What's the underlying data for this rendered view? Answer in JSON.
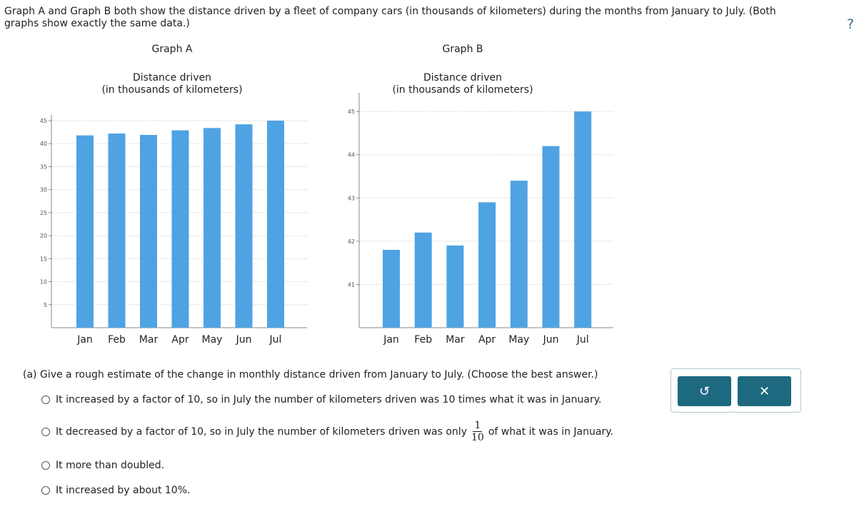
{
  "intro": "Graph A and Graph B both show the distance driven by a fleet of company cars (in thousands of kilometers) during the months from January to July. (Both graphs show exactly the same data.)",
  "help_label": "?",
  "colors": {
    "bar": "#4fa3e3",
    "button": "#1d6a80",
    "axis": "#888888",
    "grid": "#bfbfbf"
  },
  "chart_data": [
    {
      "type": "bar",
      "name": "Graph A",
      "title": "Distance driven",
      "subtitle": "(in thousands of kilometers)",
      "categories": [
        "Jan",
        "Feb",
        "Mar",
        "Apr",
        "May",
        "Jun",
        "Jul"
      ],
      "values": [
        41.8,
        42.2,
        41.9,
        42.9,
        43.4,
        44.2,
        45.0
      ],
      "ylim": [
        0,
        45
      ],
      "yticks": [
        5,
        10,
        15,
        20,
        25,
        30,
        35,
        40,
        45
      ],
      "grid": true
    },
    {
      "type": "bar",
      "name": "Graph B",
      "title": "Distance driven",
      "subtitle": "(in thousands of kilometers)",
      "categories": [
        "Jan",
        "Feb",
        "Mar",
        "Apr",
        "May",
        "Jun",
        "Jul"
      ],
      "values": [
        41.8,
        42.2,
        41.9,
        42.9,
        43.4,
        44.2,
        45.0
      ],
      "ylim": [
        40,
        45.3
      ],
      "yticks": [
        41,
        42,
        43,
        44,
        45
      ],
      "grid": true
    }
  ],
  "question": {
    "prompt": "(a) Give a rough estimate of the change in monthly distance driven from January to July. (Choose the best answer.)",
    "options": [
      {
        "text": "It increased by a factor of 10, so in July the number of kilometers driven was 10 times what it was in January."
      },
      {
        "text_before": "It decreased by a factor of 10, so in July the number of kilometers driven was only",
        "frac_num": "1",
        "frac_den": "10",
        "text_after": "of what it was in January."
      },
      {
        "text": "It more than doubled."
      },
      {
        "text": "It increased by about 10%."
      }
    ]
  },
  "controls": {
    "reset_icon": "↺",
    "close_icon": "✕"
  }
}
